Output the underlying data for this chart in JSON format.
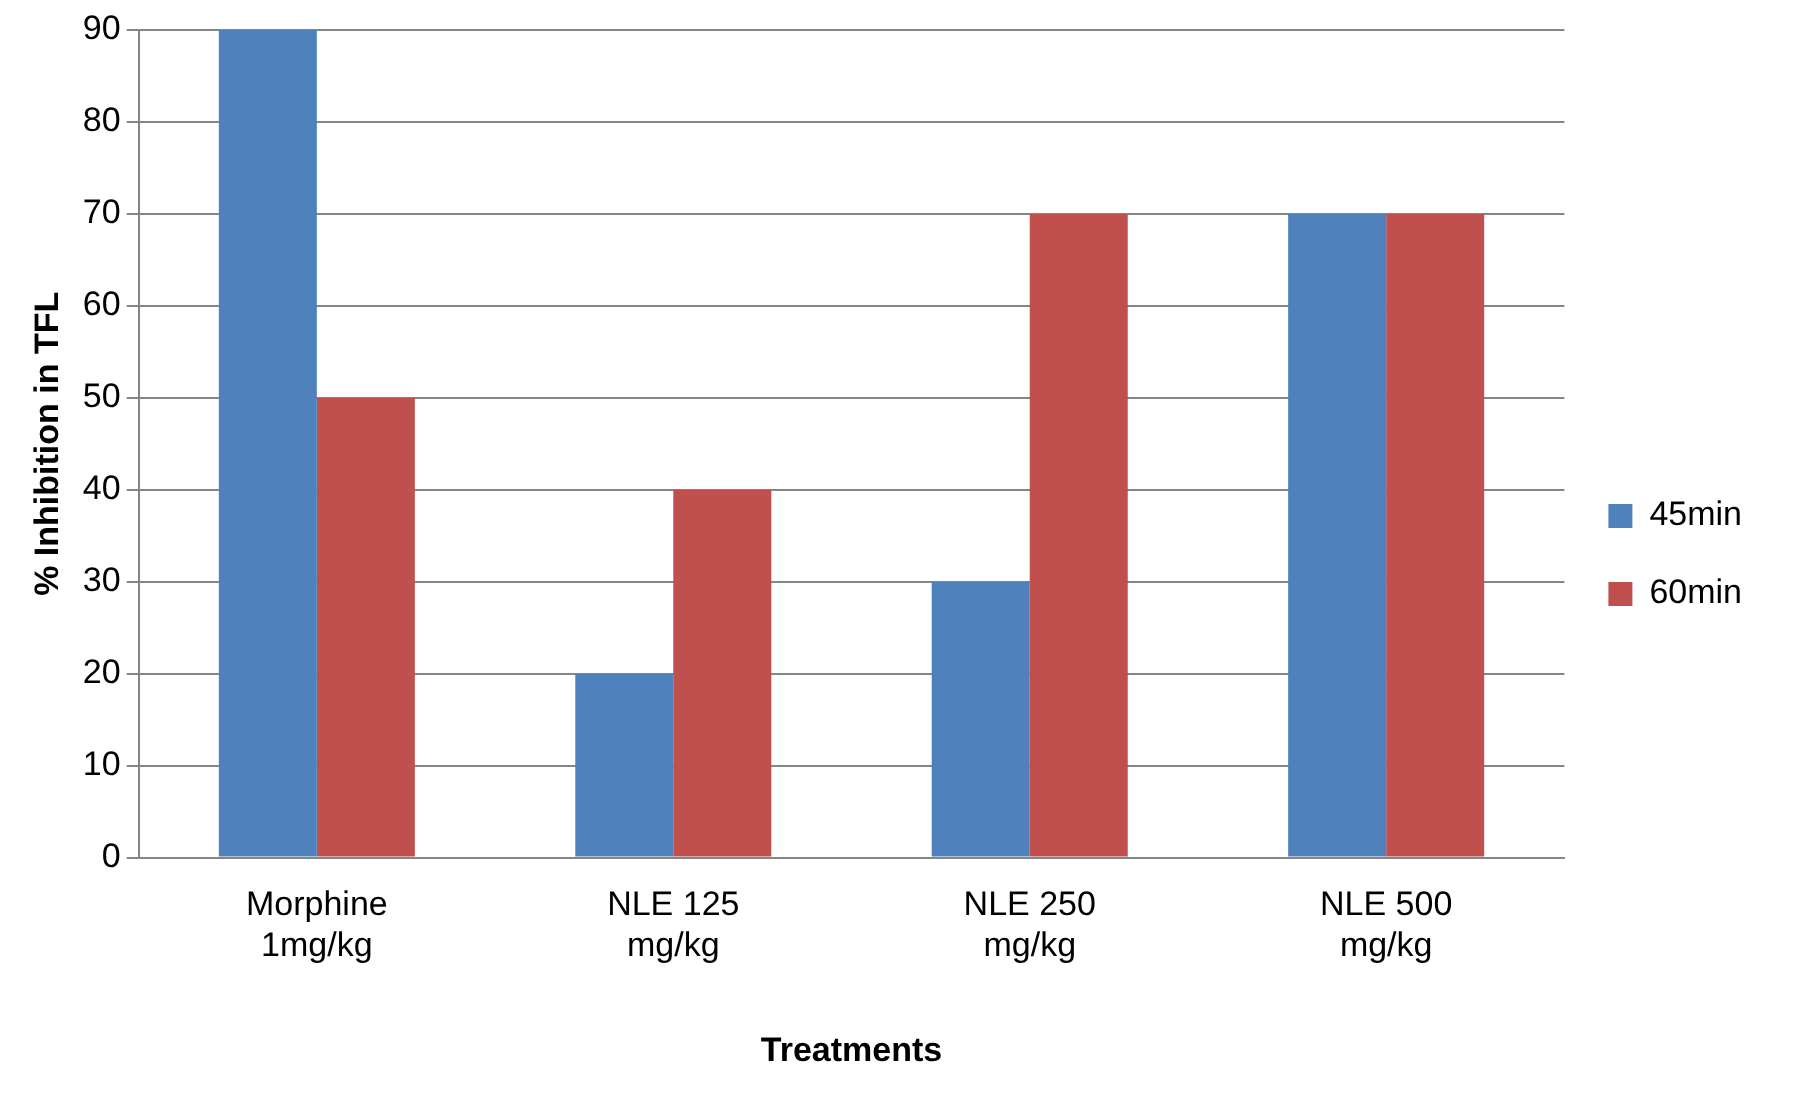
{
  "chart_data": {
    "type": "bar",
    "xlabel": "Treatments",
    "ylabel": "% Inhibition in TFL",
    "categories": [
      "Morphine\n1mg/kg",
      "NLE 125\nmg/kg",
      "NLE 250\nmg/kg",
      "NLE 500\nmg/kg"
    ],
    "series": [
      {
        "name": "45min",
        "color": "#4f81bd",
        "values": [
          90,
          20,
          30,
          70
        ]
      },
      {
        "name": "60min",
        "color": "#c0504d",
        "values": [
          50,
          40,
          70,
          70
        ]
      }
    ],
    "ylim": [
      0,
      90
    ],
    "yticks": [
      0,
      10,
      20,
      30,
      40,
      50,
      60,
      70,
      80,
      90
    ],
    "grid": "y",
    "legend": "right"
  }
}
